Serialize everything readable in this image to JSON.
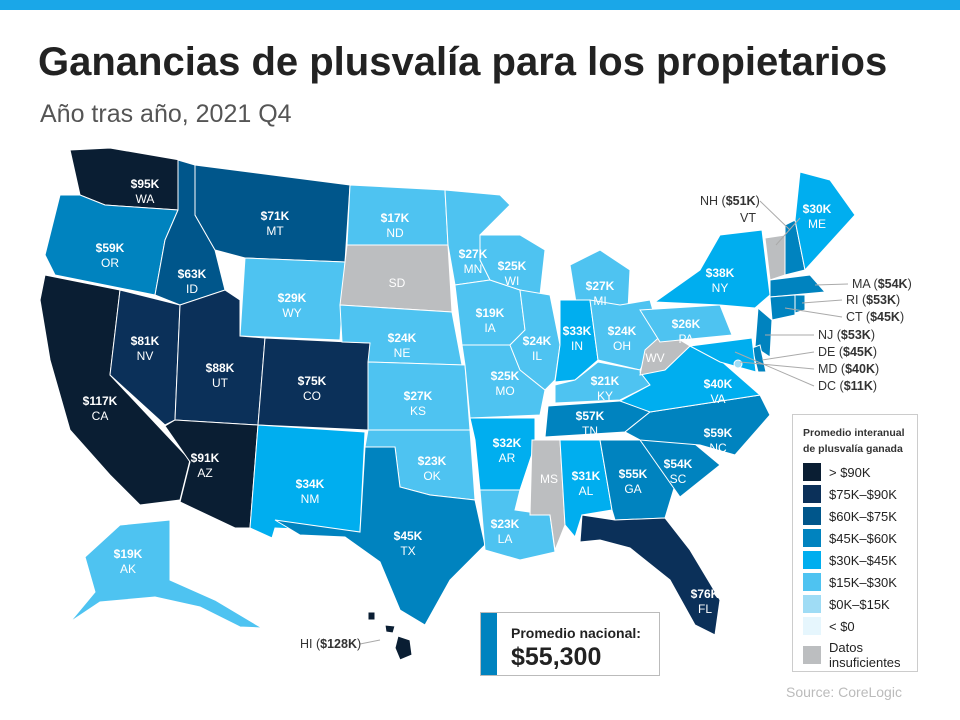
{
  "title": "Ganancias de plusvalía para los propietarios",
  "subtitle": "Año tras año, 2021 Q4",
  "legend": {
    "title_line1": "Promedio interanual",
    "title_line2": "de plusvalía ganada",
    "items": [
      {
        "label": "> $90K",
        "color": "#0a1e33"
      },
      {
        "label": "$75K–$90K",
        "color": "#0b3059"
      },
      {
        "label": "$60K–$75K",
        "color": "#00568b"
      },
      {
        "label": "$45K–$60K",
        "color": "#0083bf"
      },
      {
        "label": "$30K–$45K",
        "color": "#00aeef"
      },
      {
        "label": "$15K–$30K",
        "color": "#4ec3f1"
      },
      {
        "label": "$0K–$15K",
        "color": "#9fdcf5"
      },
      {
        "label": "< $0",
        "color": "#e6f6fd"
      },
      {
        "label": "Datos insuficientes",
        "label1": "Datos",
        "label2": "insuficientes",
        "color": "#bcbec0"
      }
    ]
  },
  "national": {
    "label": "Promedio nacional:",
    "value": "$55,300"
  },
  "source": "Source: CoreLogic",
  "states": [
    {
      "abbr": "WA",
      "value": "$95K",
      "bin": 0
    },
    {
      "abbr": "OR",
      "value": "$59K",
      "bin": 3
    },
    {
      "abbr": "CA",
      "value": "$117K",
      "bin": 0
    },
    {
      "abbr": "NV",
      "value": "$81K",
      "bin": 1
    },
    {
      "abbr": "ID",
      "value": "$63K",
      "bin": 2
    },
    {
      "abbr": "MT",
      "value": "$71K",
      "bin": 2
    },
    {
      "abbr": "WY",
      "value": "$29K",
      "bin": 5
    },
    {
      "abbr": "UT",
      "value": "$88K",
      "bin": 1
    },
    {
      "abbr": "CO",
      "value": "$75K",
      "bin": 1
    },
    {
      "abbr": "AZ",
      "value": "$91K",
      "bin": 0
    },
    {
      "abbr": "NM",
      "value": "$34K",
      "bin": 4
    },
    {
      "abbr": "ND",
      "value": "$17K",
      "bin": 5
    },
    {
      "abbr": "SD",
      "value": "",
      "bin": 8
    },
    {
      "abbr": "NE",
      "value": "$24K",
      "bin": 5
    },
    {
      "abbr": "KS",
      "value": "$27K",
      "bin": 5
    },
    {
      "abbr": "OK",
      "value": "$23K",
      "bin": 5
    },
    {
      "abbr": "TX",
      "value": "$45K",
      "bin": 3
    },
    {
      "abbr": "MN",
      "value": "$27K",
      "bin": 5
    },
    {
      "abbr": "IA",
      "value": "$19K",
      "bin": 5
    },
    {
      "abbr": "MO",
      "value": "$25K",
      "bin": 5
    },
    {
      "abbr": "AR",
      "value": "$32K",
      "bin": 4
    },
    {
      "abbr": "LA",
      "value": "$23K",
      "bin": 5
    },
    {
      "abbr": "WI",
      "value": "$25K",
      "bin": 5
    },
    {
      "abbr": "IL",
      "value": "$24K",
      "bin": 5
    },
    {
      "abbr": "MI",
      "value": "$27K",
      "bin": 5
    },
    {
      "abbr": "IN",
      "value": "$33K",
      "bin": 4
    },
    {
      "abbr": "OH",
      "value": "$24K",
      "bin": 5
    },
    {
      "abbr": "KY",
      "value": "$21K",
      "bin": 5
    },
    {
      "abbr": "TN",
      "value": "$57K",
      "bin": 3
    },
    {
      "abbr": "MS",
      "value": "",
      "bin": 8
    },
    {
      "abbr": "AL",
      "value": "$31K",
      "bin": 4
    },
    {
      "abbr": "GA",
      "value": "$55K",
      "bin": 3
    },
    {
      "abbr": "FL",
      "value": "$76K",
      "bin": 1
    },
    {
      "abbr": "SC",
      "value": "$54K",
      "bin": 3
    },
    {
      "abbr": "NC",
      "value": "$59K",
      "bin": 3
    },
    {
      "abbr": "VA",
      "value": "$40K",
      "bin": 4
    },
    {
      "abbr": "WV",
      "value": "",
      "bin": 8
    },
    {
      "abbr": "PA",
      "value": "$26K",
      "bin": 5
    },
    {
      "abbr": "NY",
      "value": "$38K",
      "bin": 4
    },
    {
      "abbr": "VT",
      "value": "",
      "bin": 8
    },
    {
      "abbr": "NH",
      "value": "$51K",
      "bin": 3
    },
    {
      "abbr": "ME",
      "value": "$30K",
      "bin": 4
    },
    {
      "abbr": "MA",
      "value": "$54K",
      "bin": 3
    },
    {
      "abbr": "CT",
      "value": "$45K",
      "bin": 3
    },
    {
      "abbr": "RI",
      "value": "$53K",
      "bin": 3
    },
    {
      "abbr": "NJ",
      "value": "$53K",
      "bin": 3
    },
    {
      "abbr": "DE",
      "value": "$45K",
      "bin": 3
    },
    {
      "abbr": "MD",
      "value": "$40K",
      "bin": 4
    },
    {
      "abbr": "DC",
      "value": "$11K",
      "bin": 6
    },
    {
      "abbr": "AK",
      "value": "$19K",
      "bin": 5
    },
    {
      "abbr": "HI",
      "value": "$128K",
      "bin": 0
    }
  ]
}
